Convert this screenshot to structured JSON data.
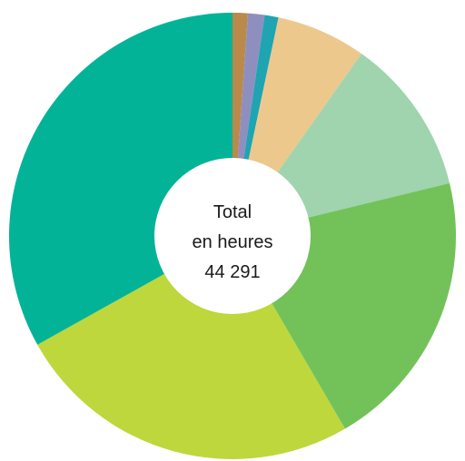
{
  "chart_data": {
    "type": "pie",
    "variant": "donut",
    "center_label": {
      "line1": "Total",
      "line2": "en heures",
      "value": "44 291"
    },
    "slices": [
      {
        "value": 1.1,
        "color": "#b98a4c"
      },
      {
        "value": 1.2,
        "color": "#8f8fbf"
      },
      {
        "value": 1.0,
        "color": "#1fa4b2"
      },
      {
        "value": 6.5,
        "color": "#ecc88c"
      },
      {
        "value": 11.4,
        "color": "#9fd4ae"
      },
      {
        "value": 20.4,
        "color": "#72c259"
      },
      {
        "value": 25.3,
        "color": "#bed73c"
      },
      {
        "value": 33.1,
        "color": "#03b398"
      }
    ],
    "start_angle_deg": 0,
    "direction": "clockwise"
  }
}
